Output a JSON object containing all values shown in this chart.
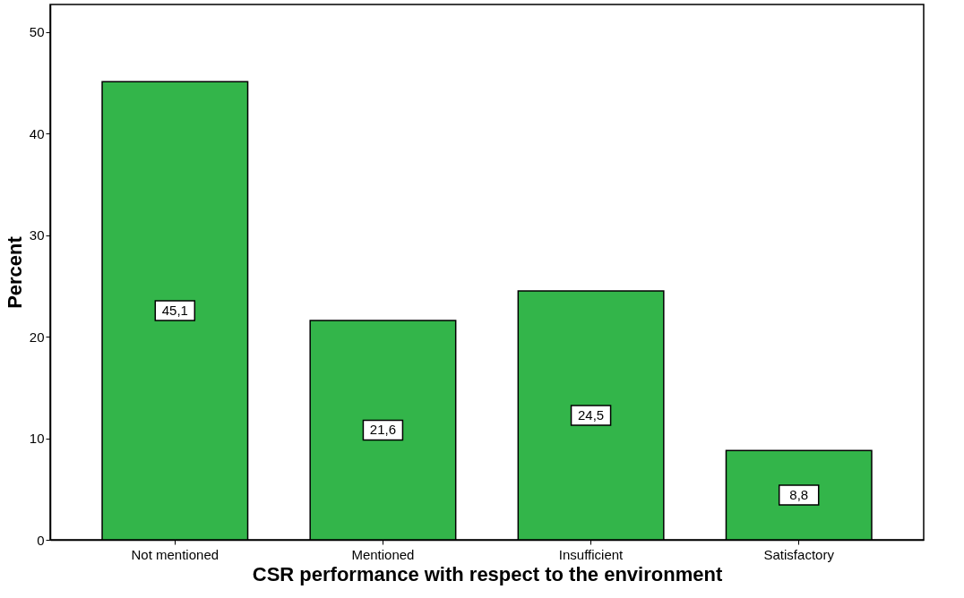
{
  "chart_data": {
    "type": "bar",
    "xlabel": "CSR performance with respect to the environment",
    "ylabel": "Percent",
    "categories": [
      "Not mentioned",
      "Mentioned",
      "Insufficient",
      "Satisfactory"
    ],
    "values": [
      45.1,
      21.6,
      24.5,
      8.8
    ],
    "value_labels": [
      "45,1",
      "21,6",
      "24,5",
      "8,8"
    ],
    "color": "#33b54a",
    "ylim": [
      0,
      52.7
    ],
    "yticks": [
      0,
      10,
      20,
      30,
      40,
      50
    ],
    "grid": false
  }
}
